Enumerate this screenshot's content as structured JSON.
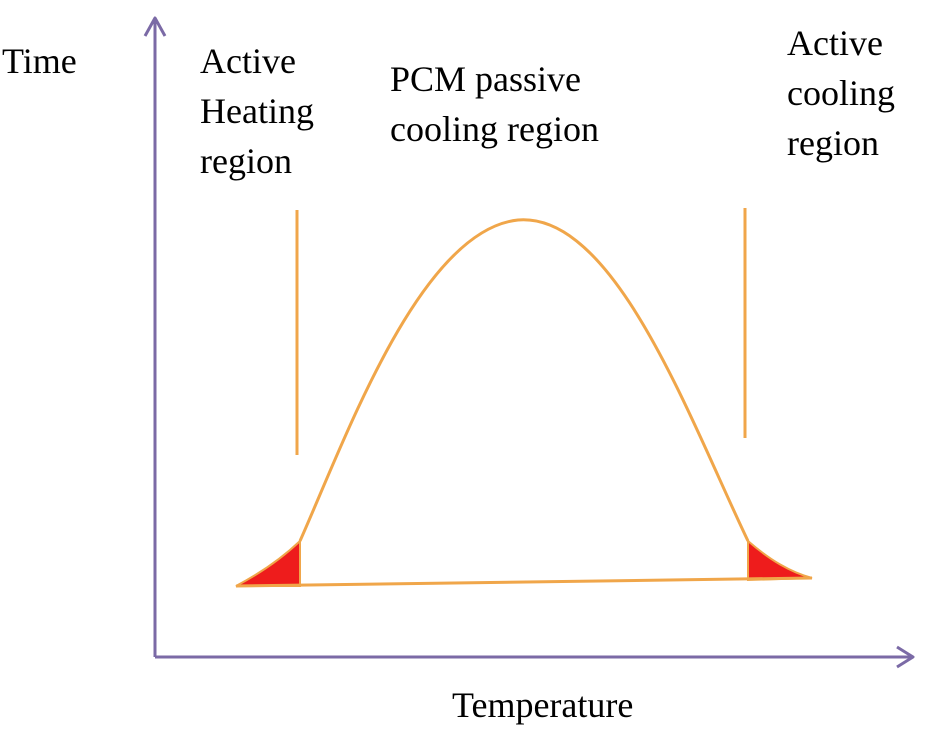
{
  "labels": {
    "y_axis": "Time",
    "x_axis": "Temperature",
    "active_heating": "Active\nHeating\nregion",
    "pcm_passive": "PCM passive\ncooling region",
    "active_cooling": "Active\ncooling\nregion"
  },
  "colors": {
    "axis": "#7b6aa6",
    "curve": "#f0a64a",
    "fill": "#ee1c1c",
    "text": "#000000"
  }
}
